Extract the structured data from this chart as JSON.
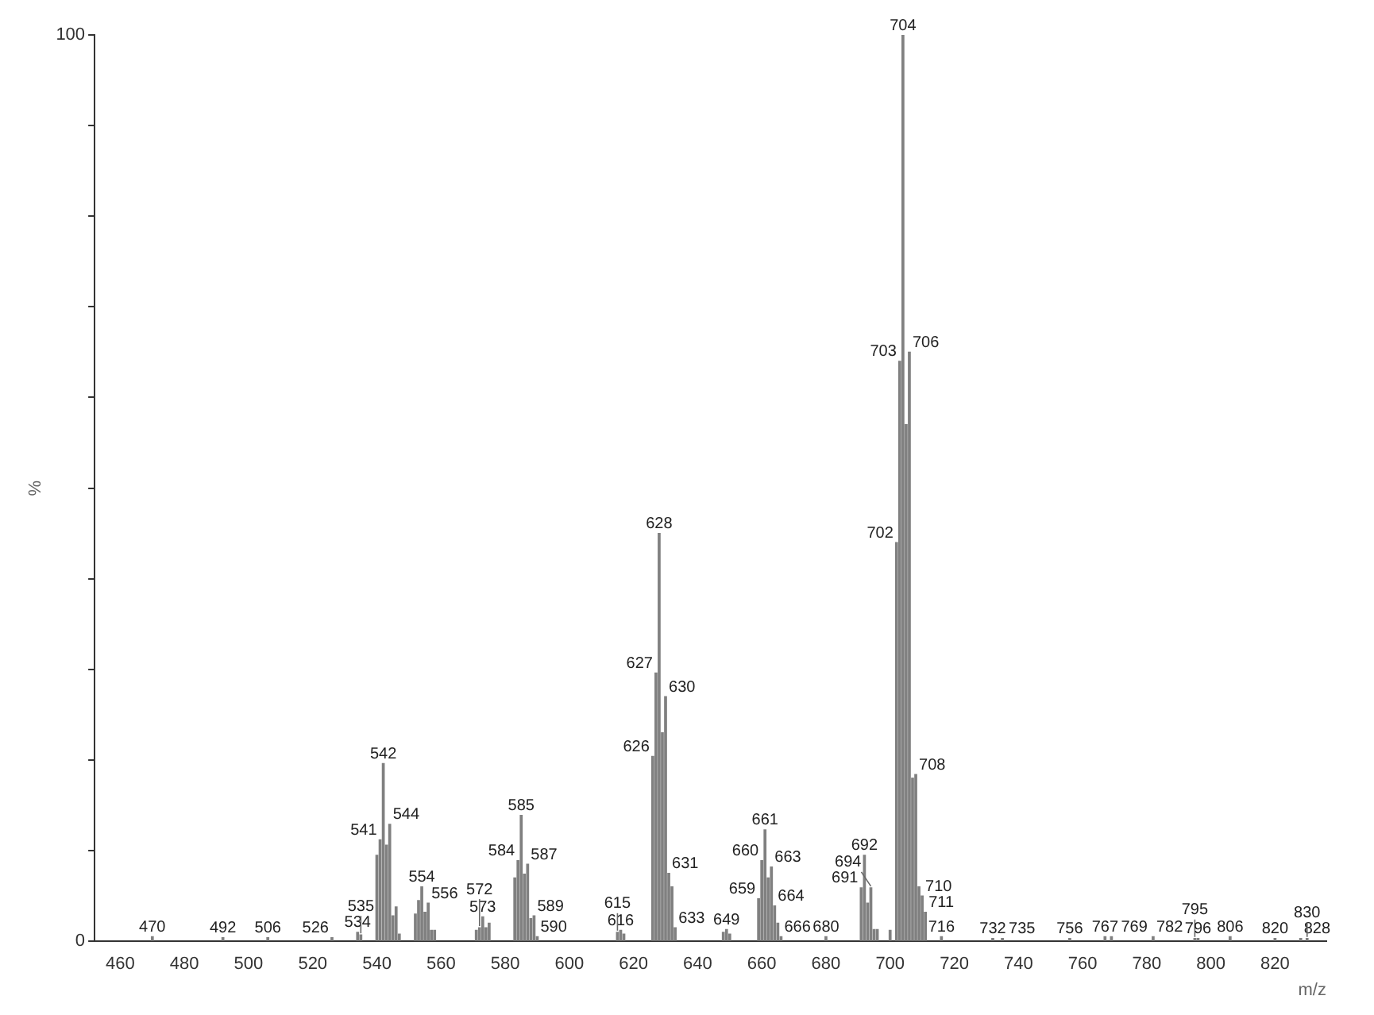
{
  "chart_data": {
    "type": "bar",
    "xlabel": "m/z",
    "ylabel": "%",
    "x": [
      470,
      492,
      506,
      526,
      534,
      535,
      540,
      541,
      542,
      543,
      544,
      545,
      546,
      547,
      552,
      553,
      554,
      555,
      556,
      557,
      558,
      571,
      572,
      573,
      574,
      575,
      583,
      584,
      585,
      586,
      587,
      588,
      589,
      590,
      615,
      616,
      617,
      626,
      627,
      628,
      629,
      630,
      631,
      632,
      633,
      648,
      649,
      650,
      659,
      660,
      661,
      662,
      663,
      664,
      665,
      666,
      680,
      691,
      692,
      693,
      694,
      695,
      696,
      700,
      702,
      703,
      704,
      705,
      706,
      707,
      708,
      709,
      710,
      711,
      716,
      732,
      735,
      756,
      767,
      769,
      782,
      795,
      796,
      806,
      820,
      828,
      830
    ],
    "values": [
      0.5,
      0.4,
      0.4,
      0.4,
      1,
      0.7,
      9.5,
      11.2,
      19.6,
      10.6,
      12.9,
      2.8,
      3.8,
      0.8,
      3,
      4.5,
      6,
      3.2,
      4.2,
      1.2,
      1.2,
      1.2,
      1.5,
      2.7,
      1.5,
      2,
      7,
      8.9,
      13.9,
      7.4,
      8.5,
      2.5,
      2.8,
      0.5,
      1,
      1.2,
      0.8,
      20.4,
      29.6,
      45,
      23,
      27,
      7.5,
      6,
      1.5,
      1,
      1.3,
      0.8,
      4.7,
      8.9,
      12.3,
      7,
      8.2,
      3.9,
      2,
      0.5,
      0.5,
      5.9,
      9.5,
      4.2,
      5.9,
      1.3,
      1.3,
      1.2,
      44,
      64,
      100,
      57,
      65,
      18,
      18.4,
      6,
      5,
      3.2,
      0.5,
      0.3,
      0.3,
      0.3,
      0.5,
      0.5,
      0.5,
      0.3,
      0.3,
      0.5,
      0.3,
      0.3,
      0.3
    ],
    "annotations": [
      {
        "text": "470",
        "x": 470,
        "y": 0.5
      },
      {
        "text": "492",
        "x": 492,
        "y": 0.4
      },
      {
        "text": "506",
        "x": 506,
        "y": 0.4
      },
      {
        "text": "526",
        "x": 526,
        "y": 0.4
      },
      {
        "text": "534",
        "x": 534,
        "y": 1
      },
      {
        "text": "535",
        "x": 535,
        "y": 0.7
      },
      {
        "text": "541",
        "x": 541,
        "y": 11.2
      },
      {
        "text": "542",
        "x": 542,
        "y": 19.6
      },
      {
        "text": "544",
        "x": 544,
        "y": 12.9
      },
      {
        "text": "554",
        "x": 554,
        "y": 6
      },
      {
        "text": "556",
        "x": 556,
        "y": 4.2
      },
      {
        "text": "572",
        "x": 572,
        "y": 1.5
      },
      {
        "text": "573",
        "x": 573,
        "y": 2.7
      },
      {
        "text": "584",
        "x": 584,
        "y": 8.9
      },
      {
        "text": "585",
        "x": 585,
        "y": 13.9
      },
      {
        "text": "587",
        "x": 587,
        "y": 8.5
      },
      {
        "text": "589",
        "x": 589,
        "y": 2.8
      },
      {
        "text": "590",
        "x": 590,
        "y": 0.5
      },
      {
        "text": "615",
        "x": 615,
        "y": 1
      },
      {
        "text": "616",
        "x": 616,
        "y": 1.2
      },
      {
        "text": "626",
        "x": 626,
        "y": 20.4
      },
      {
        "text": "627",
        "x": 627,
        "y": 29.6
      },
      {
        "text": "628",
        "x": 628,
        "y": 45
      },
      {
        "text": "630",
        "x": 630,
        "y": 27
      },
      {
        "text": "631",
        "x": 631,
        "y": 7.5
      },
      {
        "text": "633",
        "x": 633,
        "y": 1.5
      },
      {
        "text": "649",
        "x": 649,
        "y": 1.3
      },
      {
        "text": "659",
        "x": 659,
        "y": 4.7
      },
      {
        "text": "660",
        "x": 660,
        "y": 8.9
      },
      {
        "text": "661",
        "x": 661,
        "y": 12.3
      },
      {
        "text": "663",
        "x": 663,
        "y": 8.2
      },
      {
        "text": "664",
        "x": 664,
        "y": 3.9
      },
      {
        "text": "666",
        "x": 666,
        "y": 0.5
      },
      {
        "text": "680",
        "x": 680,
        "y": 0.5
      },
      {
        "text": "691",
        "x": 691,
        "y": 5.9
      },
      {
        "text": "692",
        "x": 692,
        "y": 9.5
      },
      {
        "text": "694",
        "x": 694,
        "y": 5.9
      },
      {
        "text": "702",
        "x": 702,
        "y": 44
      },
      {
        "text": "703",
        "x": 703,
        "y": 64
      },
      {
        "text": "704",
        "x": 704,
        "y": 100
      },
      {
        "text": "706",
        "x": 706,
        "y": 65
      },
      {
        "text": "708",
        "x": 708,
        "y": 18.4
      },
      {
        "text": "710",
        "x": 710,
        "y": 5
      },
      {
        "text": "711",
        "x": 711,
        "y": 3.2
      },
      {
        "text": "716",
        "x": 716,
        "y": 0.5
      },
      {
        "text": "732",
        "x": 732,
        "y": 0.3
      },
      {
        "text": "735",
        "x": 735,
        "y": 0.3
      },
      {
        "text": "756",
        "x": 756,
        "y": 0.3
      },
      {
        "text": "767",
        "x": 767,
        "y": 0.5
      },
      {
        "text": "769",
        "x": 769,
        "y": 0.5
      },
      {
        "text": "782",
        "x": 782,
        "y": 0.5
      },
      {
        "text": "795",
        "x": 795,
        "y": 0.3
      },
      {
        "text": "796",
        "x": 796,
        "y": 0.3
      },
      {
        "text": "806",
        "x": 806,
        "y": 0.5
      },
      {
        "text": "820",
        "x": 820,
        "y": 0.3
      },
      {
        "text": "828",
        "x": 828,
        "y": 0.3
      },
      {
        "text": "830",
        "x": 830,
        "y": 0.3
      }
    ],
    "color": "#808080",
    "xlim": [
      452,
      836
    ],
    "xticks": [
      460,
      480,
      500,
      520,
      540,
      560,
      580,
      600,
      620,
      640,
      660,
      680,
      700,
      720,
      740,
      760,
      780,
      800,
      820
    ],
    "ylim": [
      0,
      100
    ],
    "yticks": [
      0,
      {
        "value": 10,
        "label": null
      },
      {
        "value": 20,
        "label": null
      },
      {
        "value": 30,
        "label": null
      },
      {
        "value": 40,
        "label": null
      },
      {
        "value": 50,
        "label": null
      },
      {
        "value": 60,
        "label": null
      },
      {
        "value": 70,
        "label": null
      },
      {
        "value": 80,
        "label": null
      },
      {
        "value": 90,
        "label": null
      },
      100
    ],
    "grid": false,
    "legend": false
  }
}
